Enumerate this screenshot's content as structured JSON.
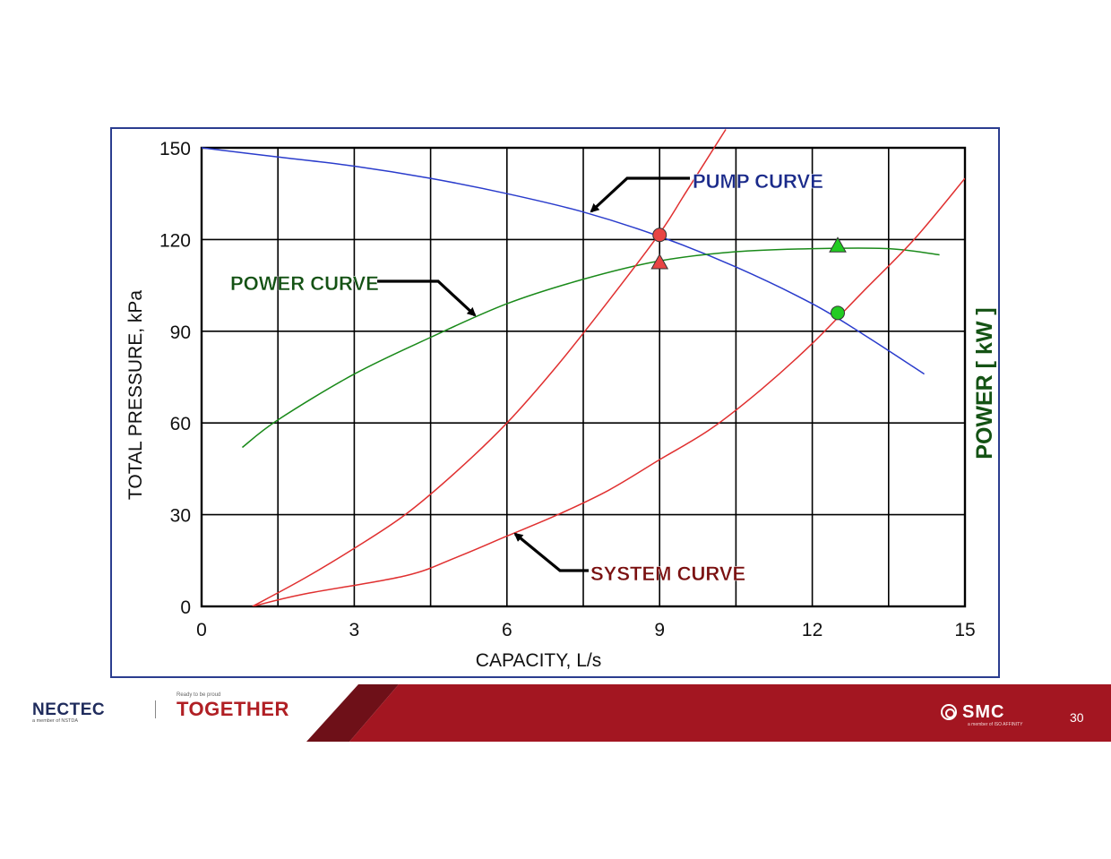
{
  "chart_data": {
    "type": "line",
    "title": "",
    "xlabel": "CAPACITY, L/s",
    "ylabel": "TOTAL PRESSURE, kPa",
    "y2label": "POWER [ kW ]",
    "xlim": [
      0,
      15
    ],
    "ylim": [
      0,
      150
    ],
    "x_ticks": [
      "0",
      "3",
      "6",
      "9",
      "12",
      "15"
    ],
    "y_ticks": [
      "0",
      "30",
      "60",
      "90",
      "120",
      "150"
    ],
    "grid": true,
    "series": [
      {
        "key": "pump",
        "color": "#2a3ccc",
        "x": [
          0,
          1.5,
          3,
          4.5,
          6,
          7.5,
          9,
          10.5,
          12,
          13,
          14.2
        ],
        "y": [
          150,
          147,
          144,
          140,
          135,
          129,
          121,
          111,
          99,
          89,
          76
        ]
      },
      {
        "key": "power",
        "color": "#1a8a1a",
        "x": [
          0.8,
          1.5,
          3,
          4.5,
          6,
          7.5,
          9,
          10.5,
          12,
          13.5,
          14.5
        ],
        "y": [
          52,
          61,
          76,
          88,
          99,
          107,
          113,
          116,
          117,
          117,
          115
        ]
      },
      {
        "key": "system-steep",
        "color": "#e03030",
        "x": [
          1,
          2,
          3,
          4,
          5,
          6,
          7,
          8,
          9,
          9.5,
          10.3
        ],
        "y": [
          0,
          9,
          19,
          30,
          44,
          60,
          79,
          100,
          122,
          135,
          156
        ]
      },
      {
        "key": "system-flat",
        "color": "#e03030",
        "x": [
          1,
          2,
          4,
          5,
          6,
          7,
          8,
          9,
          10,
          11,
          12,
          13,
          14,
          15
        ],
        "y": [
          0,
          4,
          10,
          16,
          23,
          30,
          38,
          48,
          58,
          71,
          86,
          103,
          120,
          140
        ]
      }
    ],
    "markers": [
      {
        "shape": "circle",
        "x": 9,
        "y": 121.5,
        "color": "#e84545"
      },
      {
        "shape": "triangle",
        "x": 9,
        "y": 112.5,
        "color": "#e84545"
      },
      {
        "shape": "circle",
        "x": 12.5,
        "y": 96,
        "color": "#22cc22"
      },
      {
        "shape": "triangle",
        "x": 12.5,
        "y": 118,
        "color": "#22cc22"
      }
    ],
    "annotations": [
      {
        "text": "PUMP CURVE",
        "color": "#1a2a8a"
      },
      {
        "text": "POWER CURVE",
        "color": "#145214"
      },
      {
        "text": "SYSTEM CURVE",
        "color": "#7a1010"
      }
    ]
  },
  "footer": {
    "nectec_logo": "NECTEC",
    "nectec_sub": "a member of NSTDA",
    "together_tagline": "Ready to be proud",
    "together_logo": "TOGETHER",
    "smc_logo": "SMC",
    "smc_sub": "a member of ISO AFFINITY",
    "page_number": "30",
    "bar_color": "#a31621",
    "bar_dark_color": "#6e1018"
  }
}
